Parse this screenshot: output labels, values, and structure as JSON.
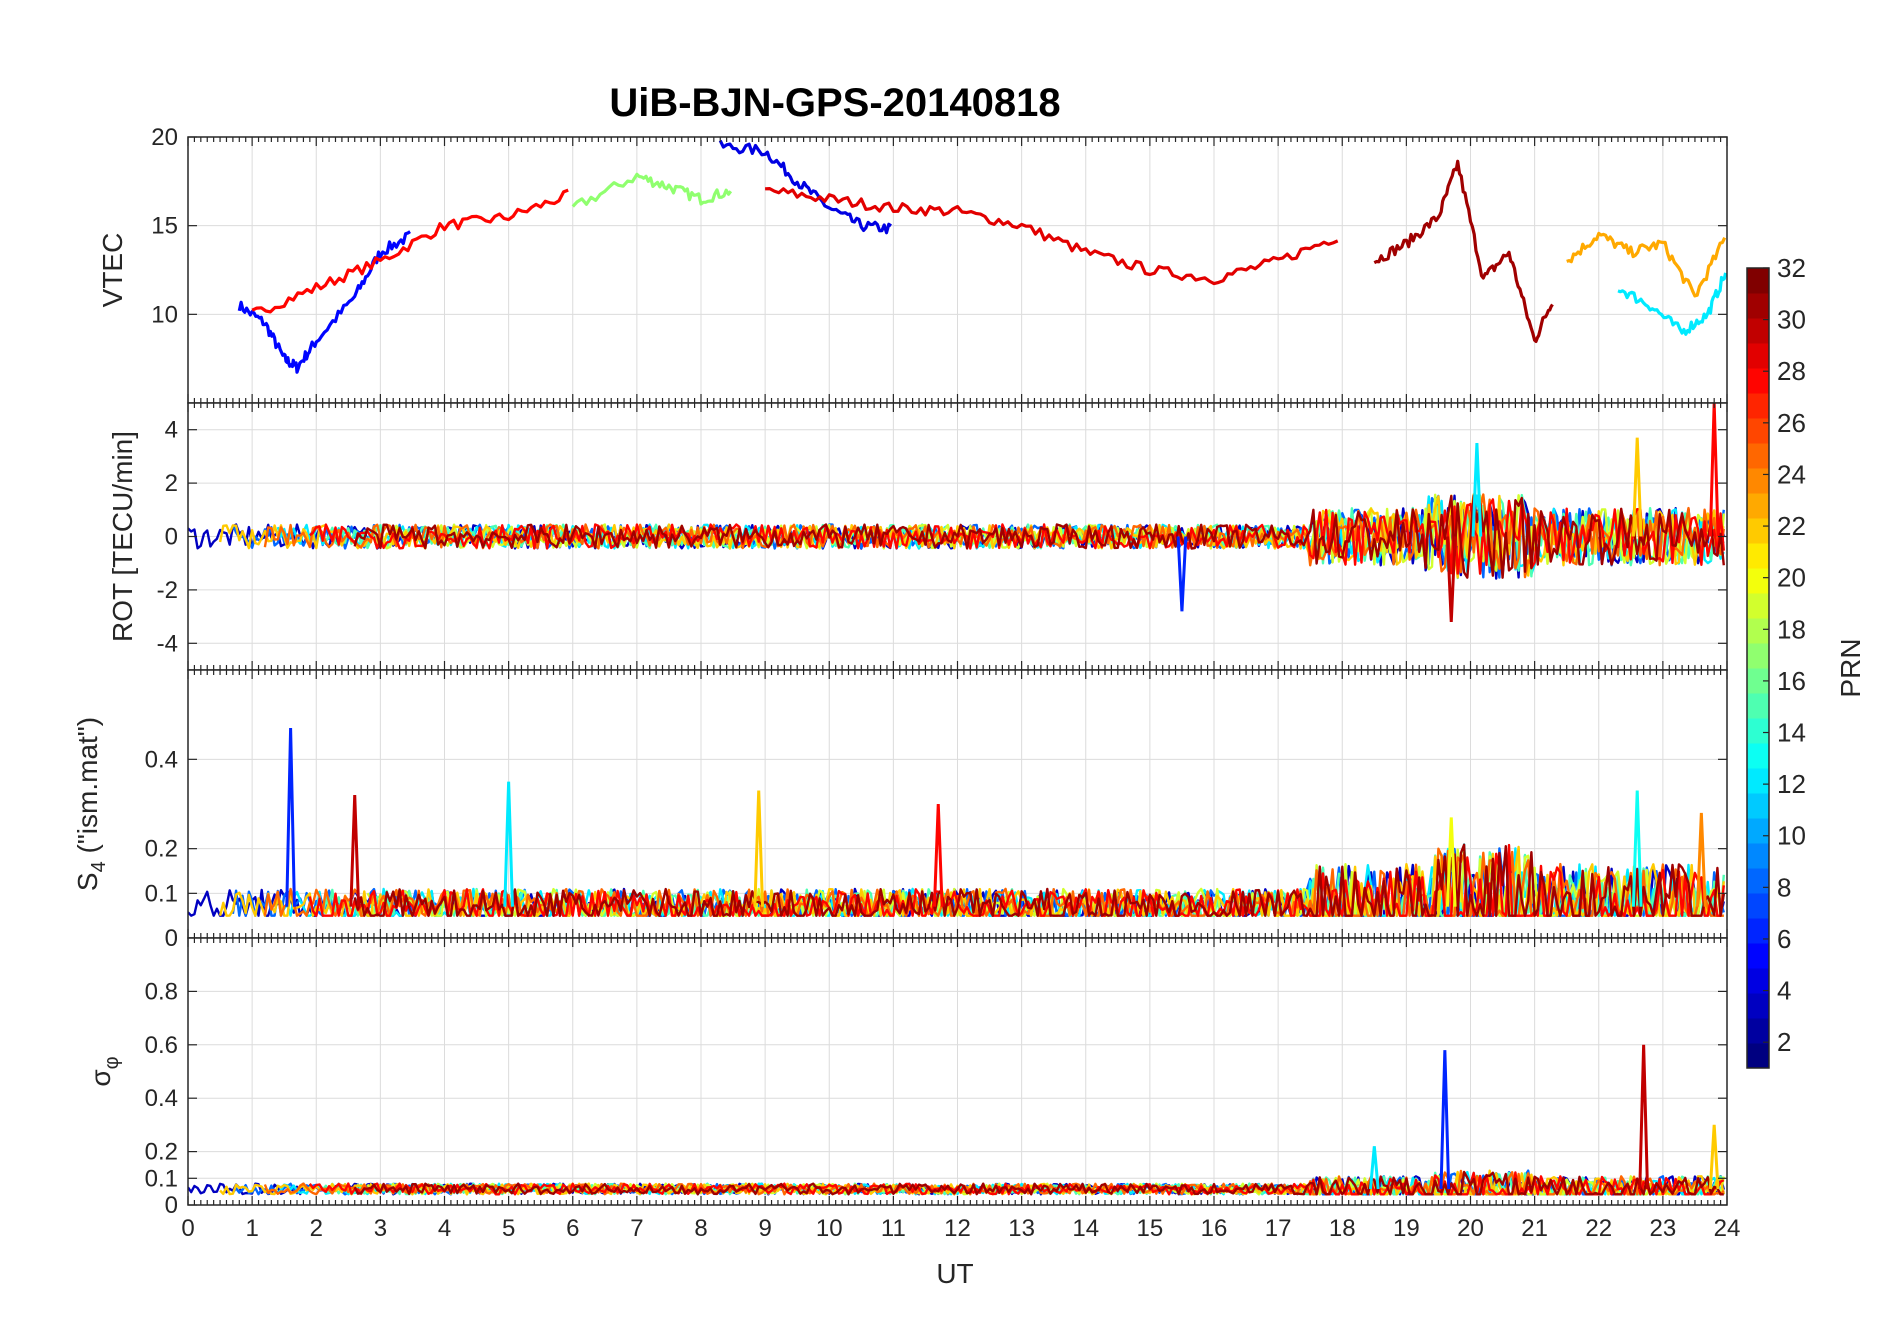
{
  "chart_data": {
    "type": "line",
    "title": "UiB-BJN-GPS-20140818",
    "xlabel": "UT",
    "xlim": [
      0,
      24
    ],
    "xticks": [
      0,
      1,
      2,
      3,
      4,
      5,
      6,
      7,
      8,
      9,
      10,
      11,
      12,
      13,
      14,
      15,
      16,
      17,
      18,
      19,
      20,
      21,
      22,
      23,
      24
    ],
    "grid": true,
    "colormap": "jet",
    "colorbar": {
      "label": "PRN",
      "range": [
        1,
        32
      ],
      "ticks": [
        2,
        4,
        6,
        8,
        10,
        12,
        14,
        16,
        18,
        20,
        22,
        24,
        26,
        28,
        30,
        32
      ],
      "placement": "right"
    },
    "panels": [
      {
        "id": "vtec",
        "ylabel": "VTEC",
        "ylim": [
          5,
          20
        ],
        "yticks": [
          10,
          15,
          20
        ],
        "sample_tracks": [
          {
            "prn": 5,
            "x": [
              0.8,
              1.2,
              1.5,
              1.7,
              2.0,
              2.6,
              3.0,
              3.5
            ],
            "y": [
              10.5,
              9.5,
              7.5,
              7.0,
              8.5,
              11.0,
              13.5,
              14.5
            ]
          },
          {
            "prn": 28,
            "x": [
              1.0,
              2.0,
              3.0,
              4.0,
              5.0,
              6.0
            ],
            "y": [
              10.0,
              11.5,
              13.0,
              15.0,
              15.5,
              16.8
            ]
          },
          {
            "prn": 17,
            "x": [
              6.0,
              7.0,
              7.5,
              8.0,
              8.5
            ],
            "y": [
              16.0,
              17.8,
              17.2,
              16.5,
              17.0
            ]
          },
          {
            "prn": 4,
            "x": [
              8.3,
              9.0,
              9.5,
              10.0,
              10.5,
              11.0
            ],
            "y": [
              19.5,
              19.2,
              17.5,
              16.0,
              15.0,
              14.8
            ]
          },
          {
            "prn": 29,
            "x": [
              9.0,
              10.0,
              11.0,
              12.0,
              13.0,
              14.0,
              15.0,
              16.0,
              17.0,
              18.0
            ],
            "y": [
              17.0,
              16.5,
              16.0,
              15.8,
              15.0,
              13.5,
              12.5,
              12.0,
              13.0,
              14.5
            ]
          },
          {
            "prn": 31,
            "x": [
              18.5,
              19.0,
              19.5,
              19.8,
              20.2,
              20.6,
              21.0,
              21.3
            ],
            "y": [
              13.0,
              14.0,
              15.5,
              18.5,
              12.0,
              13.5,
              8.5,
              11.0
            ]
          },
          {
            "prn": 23,
            "x": [
              21.5,
              22.0,
              22.5,
              23.0,
              23.5,
              24.0
            ],
            "y": [
              13.0,
              14.5,
              13.5,
              14.0,
              11.0,
              14.5
            ]
          },
          {
            "prn": 12,
            "x": [
              22.3,
              22.8,
              23.3,
              23.7,
              24.0
            ],
            "y": [
              11.5,
              10.5,
              9.0,
              10.0,
              12.5
            ]
          }
        ]
      },
      {
        "id": "rot",
        "ylabel": "ROT [TECU/min]",
        "ylim": [
          -5,
          5
        ],
        "yticks": [
          -4,
          -2,
          0,
          2,
          4
        ],
        "notable_peaks": [
          {
            "x": 15.5,
            "y": -2.8
          },
          {
            "x": 19.7,
            "y": -3.2
          },
          {
            "x": 20.1,
            "y": 3.5
          },
          {
            "x": 22.6,
            "y": 3.7
          },
          {
            "x": 23.8,
            "y": 5.0
          }
        ]
      },
      {
        "id": "s4",
        "ylabel": "S4 (\"ism.mat\")",
        "ylabel_main": "S",
        "ylabel_sub": "4",
        "ylabel_rest": " (\"ism.mat\")",
        "ylim": [
          0,
          0.6
        ],
        "yticks": [
          0,
          0.1,
          0.2,
          0.4
        ],
        "notable_peaks": [
          {
            "x": 1.6,
            "y": 0.47
          },
          {
            "x": 2.6,
            "y": 0.32
          },
          {
            "x": 5.0,
            "y": 0.35
          },
          {
            "x": 8.9,
            "y": 0.33
          },
          {
            "x": 11.7,
            "y": 0.3
          },
          {
            "x": 19.7,
            "y": 0.27
          },
          {
            "x": 22.6,
            "y": 0.33
          },
          {
            "x": 23.6,
            "y": 0.28
          }
        ]
      },
      {
        "id": "sigma",
        "ylabel": "σφ",
        "ylabel_main": "σ",
        "ylabel_sub": "φ",
        "ylim": [
          0,
          1
        ],
        "yticks": [
          0,
          0.1,
          0.2,
          0.4,
          0.6,
          0.8
        ],
        "notable_peaks": [
          {
            "x": 19.6,
            "y": 0.58
          },
          {
            "x": 22.7,
            "y": 0.6
          },
          {
            "x": 18.5,
            "y": 0.22
          },
          {
            "x": 23.8,
            "y": 0.3
          }
        ]
      }
    ]
  }
}
